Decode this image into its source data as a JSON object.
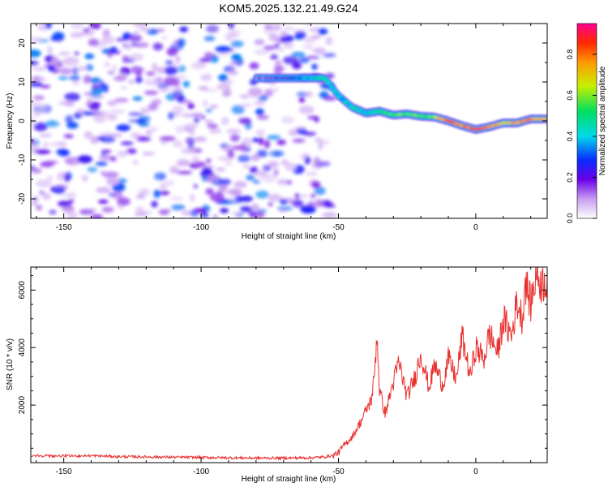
{
  "title": "KOM5.2025.132.21.49.G24",
  "chart_data": [
    {
      "type": "heatmap",
      "xlabel": "Height of straight line (km)",
      "ylabel": "Frequency (Hz)",
      "xlim": [
        -162,
        26
      ],
      "ylim": [
        -25,
        25
      ],
      "xticks": [
        -150,
        -100,
        -50,
        0
      ],
      "yticks": [
        -20,
        -10,
        0,
        10,
        20
      ],
      "colorbar": {
        "label": "Normalized spectral amplitude",
        "range": [
          0,
          0.95
        ],
        "ticks": [
          0.0,
          0.2,
          0.4,
          0.6,
          0.8
        ]
      },
      "noise_region": {
        "x_range": [
          -162,
          -53
        ],
        "y_range": [
          -25,
          25
        ],
        "amplitude_range": [
          0.05,
          0.35
        ]
      },
      "ridge": {
        "x": [
          -80,
          -70,
          -60,
          -55,
          -50,
          -45,
          -40,
          -35,
          -30,
          -25,
          -20,
          -15,
          -10,
          -5,
          0,
          5,
          10,
          15,
          20,
          26
        ],
        "freq": [
          11,
          11,
          11,
          11,
          6.5,
          3.5,
          2.0,
          2.5,
          1.5,
          1.8,
          1.2,
          1.0,
          0.0,
          -1.2,
          -2.2,
          -1.5,
          -0.5,
          -0.5,
          0.5,
          0.5
        ],
        "amplitude": [
          0.15,
          0.2,
          0.4,
          0.45,
          0.35,
          0.45,
          0.4,
          0.5,
          0.55,
          0.6,
          0.55,
          0.6,
          0.85,
          0.75,
          0.9,
          0.8,
          0.7,
          0.75,
          0.8,
          0.7
        ]
      }
    },
    {
      "type": "line",
      "xlabel": "Height of straight line (km)",
      "ylabel": "SNR (10 * v/v)",
      "xlim": [
        -162,
        26
      ],
      "ylim": [
        0,
        6800
      ],
      "xticks": [
        -150,
        -100,
        -50,
        0
      ],
      "yticks": [
        2000,
        4000,
        6000
      ],
      "series": [
        {
          "color": "#e8312f",
          "x": [
            -162,
            -150,
            -140,
            -130,
            -120,
            -110,
            -100,
            -90,
            -80,
            -70,
            -60,
            -55,
            -52,
            -50,
            -48,
            -45,
            -42,
            -40,
            -38,
            -37,
            -36,
            -35,
            -33,
            -30,
            -28,
            -25,
            -22,
            -20,
            -17,
            -15,
            -12,
            -10,
            -7,
            -5,
            -2,
            0,
            3,
            5,
            8,
            10,
            13,
            15,
            17,
            18,
            20,
            22,
            24,
            26
          ],
          "y": [
            250,
            230,
            240,
            210,
            200,
            190,
            180,
            170,
            160,
            160,
            170,
            200,
            250,
            350,
            600,
            900,
            1400,
            1800,
            2200,
            2900,
            4500,
            2500,
            1700,
            2800,
            3500,
            2300,
            3000,
            3800,
            2600,
            3400,
            2700,
            3600,
            2900,
            4400,
            3000,
            4000,
            3600,
            4500,
            3800,
            5000,
            4400,
            5600,
            5000,
            6300,
            5500,
            6600,
            6200,
            6400
          ]
        }
      ]
    }
  ]
}
